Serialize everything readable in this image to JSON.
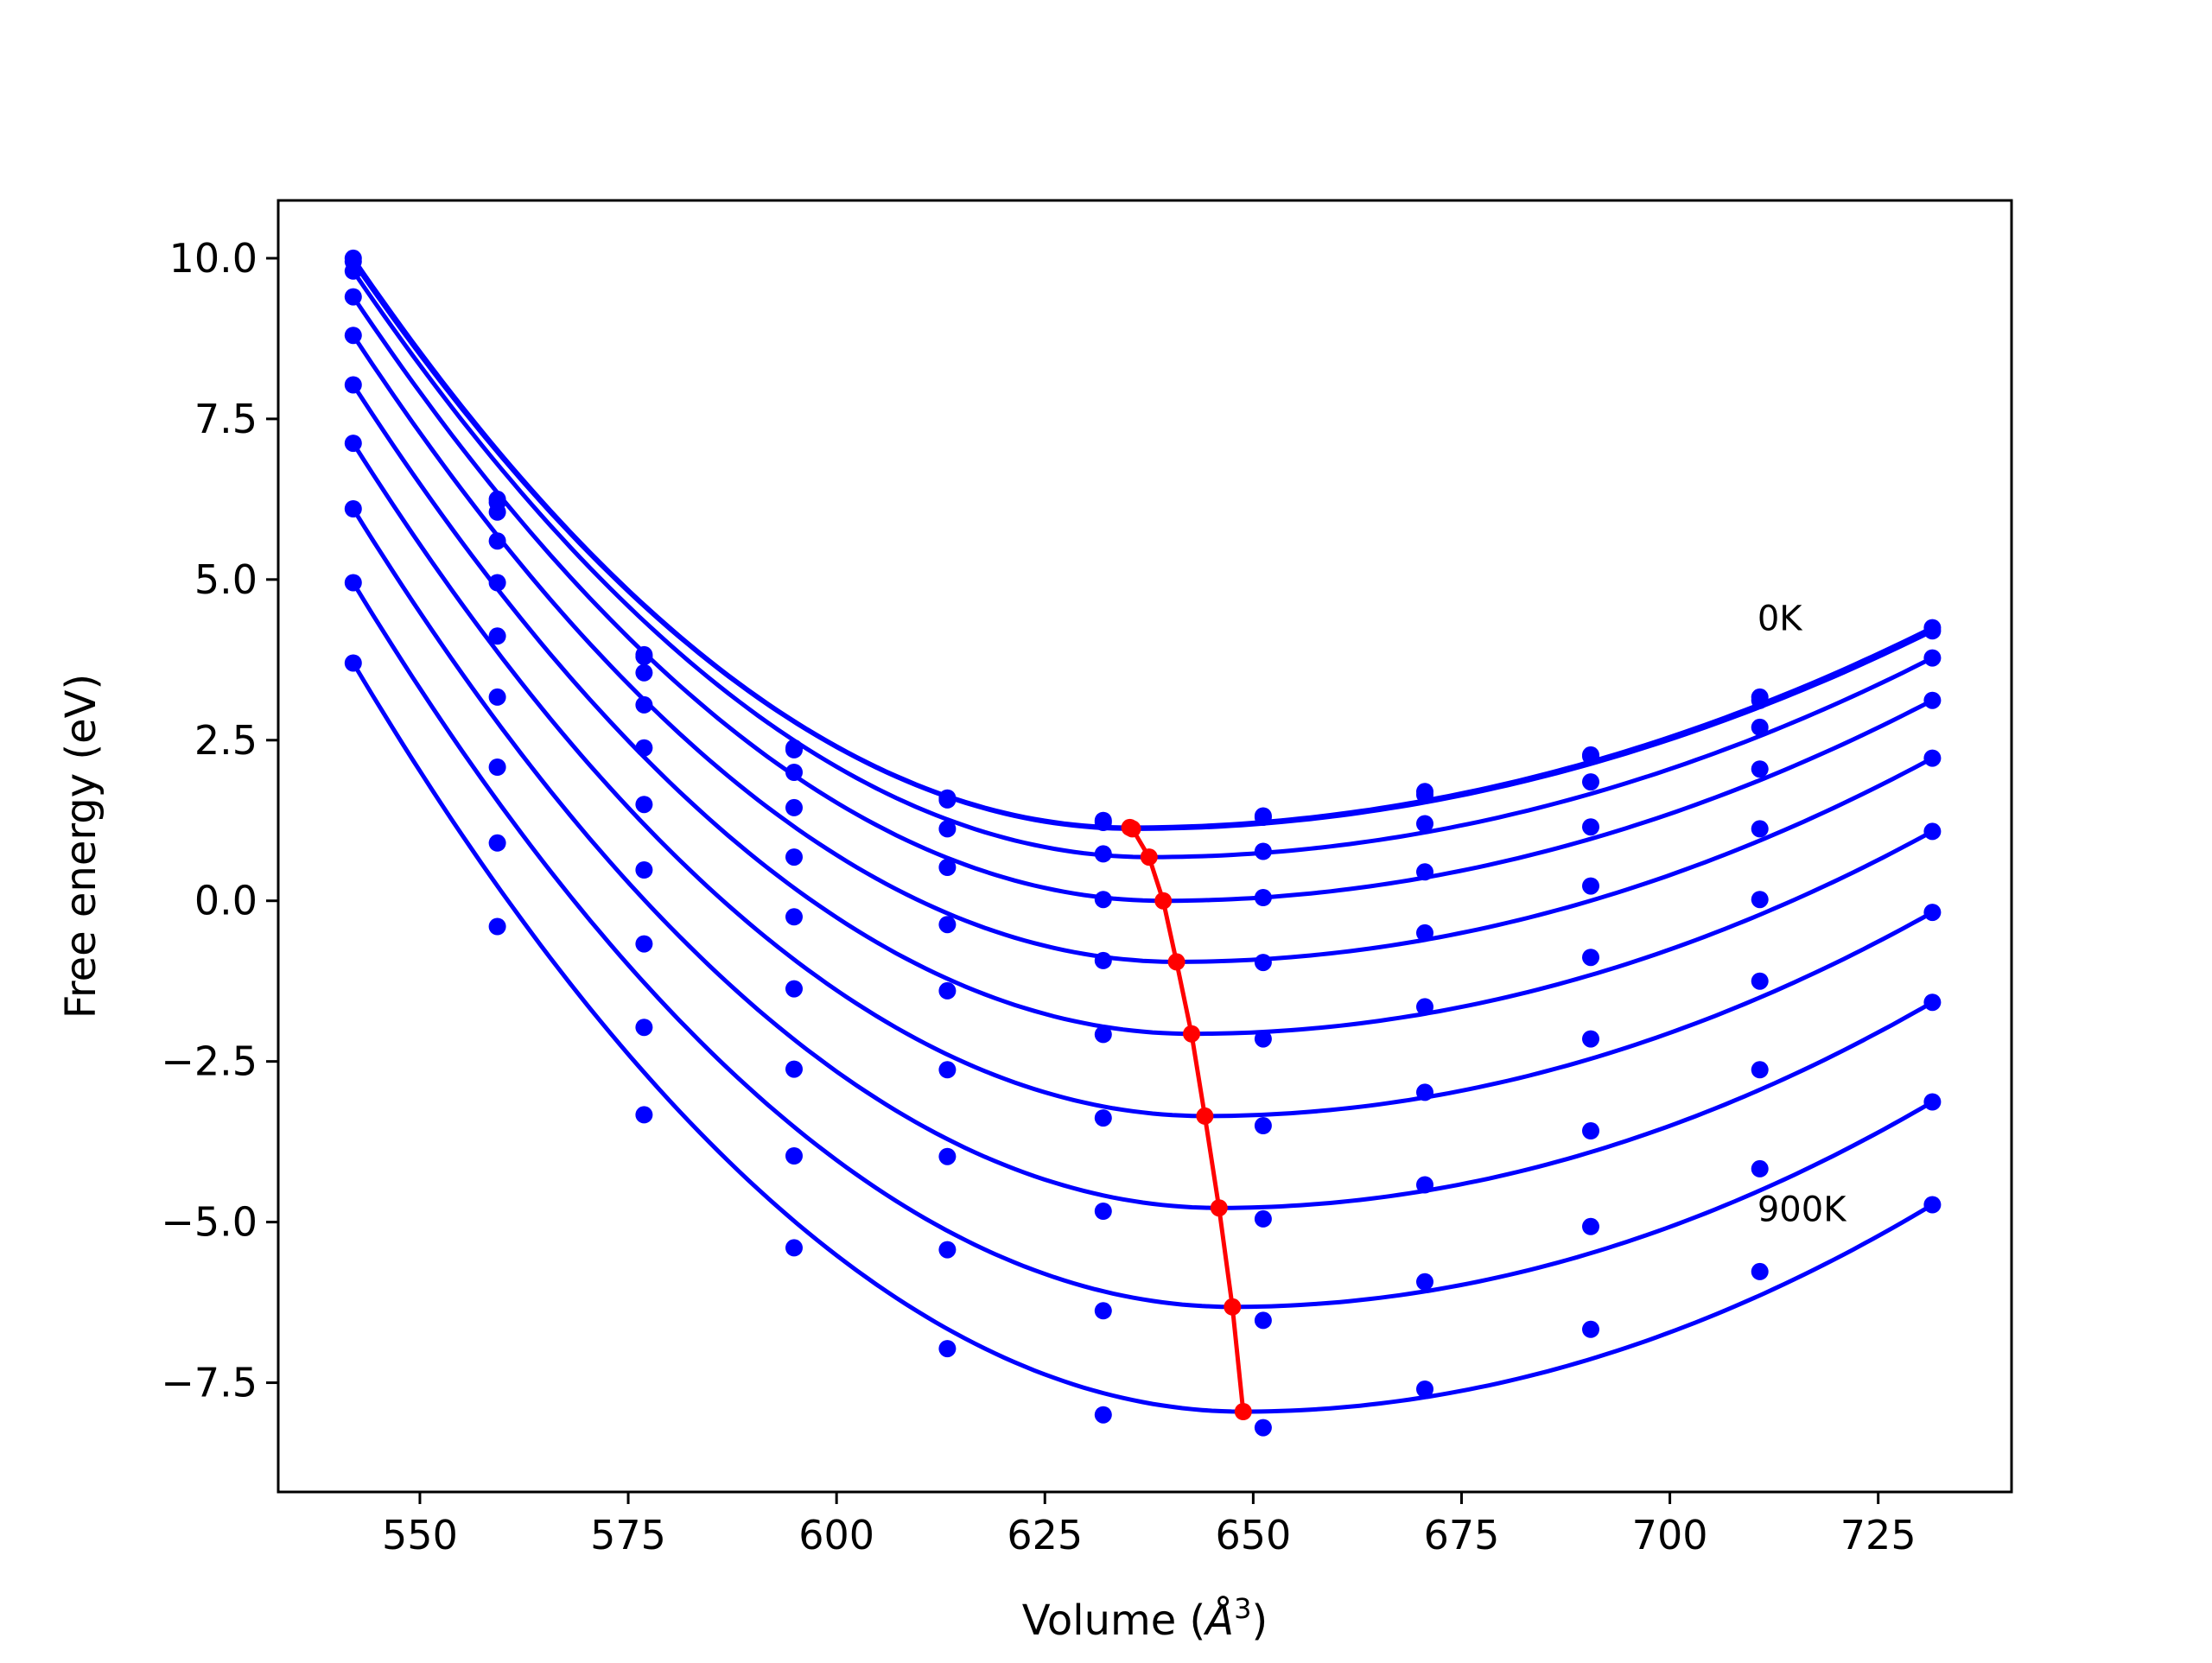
{
  "chart_data": {
    "type": "line",
    "title": "",
    "xlabel": "Volume",
    "xlabel_unit_base": "Å",
    "xlabel_unit_exp": "3",
    "ylabel": "Free energy (eV)",
    "xlim": [
      533,
      741
    ],
    "ylim": [
      -9.2,
      10.9
    ],
    "xticks": [
      550,
      575,
      600,
      625,
      650,
      675,
      700,
      725
    ],
    "xtick_labels": [
      "550",
      "575",
      "600",
      "625",
      "650",
      "675",
      "700",
      "725"
    ],
    "yticks": [
      10.0,
      7.5,
      5.0,
      2.5,
      0.0,
      -2.5,
      -5.0,
      -7.5
    ],
    "ytick_labels": [
      "10.0",
      "7.5",
      "5.0",
      "2.5",
      "0.0",
      "−2.5",
      "−5.0",
      "−7.5"
    ],
    "grid": false,
    "legend": "none",
    "annotations": [
      {
        "text": "0K",
        "x": 710.5,
        "y": 4.4
      },
      {
        "text": "900K",
        "x": 710.5,
        "y": -4.8
      }
    ],
    "colors": {
      "curves": "#0000ff",
      "minima": "#ff0000",
      "frame": "#000000"
    },
    "volumes": [
      542,
      559.3,
      576.9,
      594.9,
      613.3,
      632.0,
      651.2,
      670.6,
      690.5,
      710.8,
      731.5
    ],
    "series": [
      {
        "points": [
          10.0,
          6.25,
          3.83,
          2.38,
          1.6,
          1.25,
          1.32,
          1.7,
          2.27,
          3.17,
          4.25
        ],
        "fit": [
          1,
          635.2,
          1.14
        ],
        "fit_range": [
          542,
          731.5
        ]
      },
      {
        "points": [
          9.95,
          6.2,
          3.8,
          2.35,
          1.57,
          1.22,
          1.3,
          1.65,
          2.25,
          3.12,
          4.2
        ],
        "fit": [
          1,
          635.5,
          1.12
        ],
        "fit_range": [
          542,
          731.5
        ]
      },
      {
        "points": [
          9.8,
          6.05,
          3.55,
          2.0,
          1.12,
          0.73,
          0.77,
          1.2,
          1.85,
          2.7,
          3.78
        ],
        "fit": [
          1,
          637.5,
          0.68
        ],
        "fit_range": [
          542,
          731.5
        ]
      },
      {
        "points": [
          9.4,
          5.6,
          3.05,
          1.45,
          0.52,
          0.02,
          0.05,
          0.45,
          1.15,
          2.05,
          3.12
        ],
        "fit": [
          1,
          639.2,
          0.0
        ],
        "fit_range": [
          542,
          731.5
        ]
      },
      {
        "points": [
          8.8,
          4.95,
          2.38,
          0.68,
          -0.37,
          -0.93,
          -0.96,
          -0.5,
          0.23,
          1.12,
          2.22
        ],
        "fit": [
          1,
          640.8,
          -0.95
        ],
        "fit_range": [
          542,
          731.5
        ]
      },
      {
        "points": [
          8.03,
          4.12,
          1.5,
          -0.25,
          -1.4,
          -2.08,
          -2.15,
          -1.65,
          -0.88,
          0.02,
          1.08
        ],
        "fit": [
          1,
          642.6,
          -2.07
        ],
        "fit_range": [
          542,
          731.5
        ]
      },
      {
        "points": [
          7.12,
          3.17,
          0.48,
          -1.37,
          -2.63,
          -3.38,
          -3.5,
          -2.98,
          -2.15,
          -1.25,
          -0.18
        ],
        "fit": [
          1,
          644.2,
          -3.35
        ],
        "fit_range": [
          542,
          731.5
        ]
      },
      {
        "points": [
          6.1,
          2.08,
          -0.67,
          -2.62,
          -3.98,
          -4.83,
          -4.95,
          -4.42,
          -3.58,
          -2.63,
          -1.58
        ],
        "fit": [
          1,
          645.9,
          -4.78
        ],
        "fit_range": [
          542,
          731.5
        ]
      },
      {
        "points": [
          4.95,
          0.9,
          -1.97,
          -3.97,
          -5.43,
          -6.38,
          -6.53,
          -5.93,
          -5.07,
          -4.17,
          -3.13
        ],
        "fit": [
          1,
          647.5,
          -6.32
        ],
        "fit_range": [
          542,
          731.5
        ]
      },
      {
        "points": [
          3.7,
          -0.4,
          -3.33,
          -5.4,
          -6.97,
          -8.0,
          -8.2,
          -7.6,
          -6.67,
          -5.77,
          -4.73
        ],
        "fit": [
          1,
          648.8,
          -7.95
        ],
        "fit_range": [
          542,
          731.5
        ]
      }
    ],
    "minima": {
      "x": [
        635.2,
        635.5,
        637.5,
        639.2,
        640.8,
        642.6,
        644.2,
        645.9,
        647.5,
        648.8
      ],
      "y": [
        1.14,
        1.12,
        0.68,
        0.0,
        -0.95,
        -2.07,
        -3.35,
        -4.78,
        -6.32,
        -7.95
      ]
    }
  }
}
